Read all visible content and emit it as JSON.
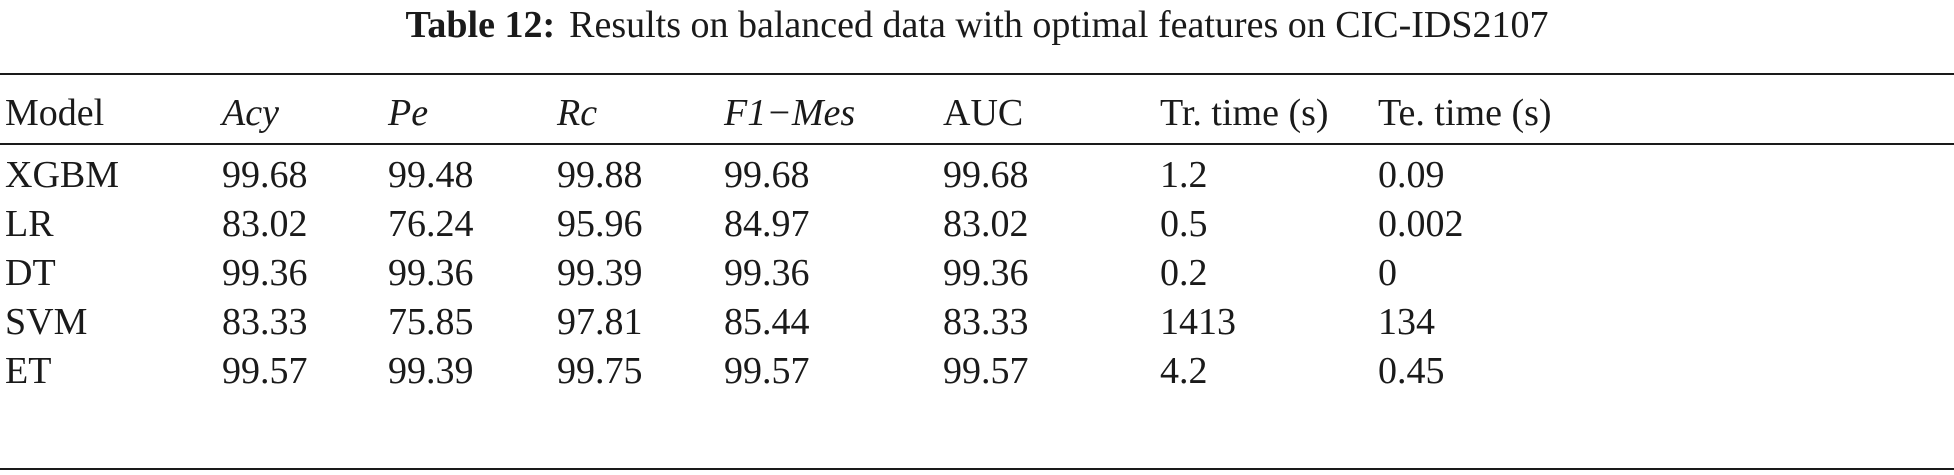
{
  "caption": {
    "label": "Table 12:",
    "text": "Results on balanced data with optimal features on CIC-IDS2107"
  },
  "table": {
    "headers": [
      "Model",
      "Acy",
      "Pe",
      "Rc",
      "F1−Mes",
      "AUC",
      "Tr. time (s)",
      "Te. time (s)"
    ],
    "rows": [
      [
        "XGBM",
        "99.68",
        "99.48",
        "99.88",
        "99.68",
        "99.68",
        "1.2",
        "0.09"
      ],
      [
        "LR",
        "83.02",
        "76.24",
        "95.96",
        "84.97",
        "83.02",
        "0.5",
        "0.002"
      ],
      [
        "DT",
        "99.36",
        "99.36",
        "99.39",
        "99.36",
        "99.36",
        "0.2",
        "0"
      ],
      [
        "SVM",
        "83.33",
        "75.85",
        "97.81",
        "85.44",
        "83.33",
        "1413",
        "134"
      ],
      [
        "ET",
        "99.57",
        "99.39",
        "99.75",
        "99.57",
        "99.57",
        "4.2",
        "0.45"
      ]
    ]
  }
}
